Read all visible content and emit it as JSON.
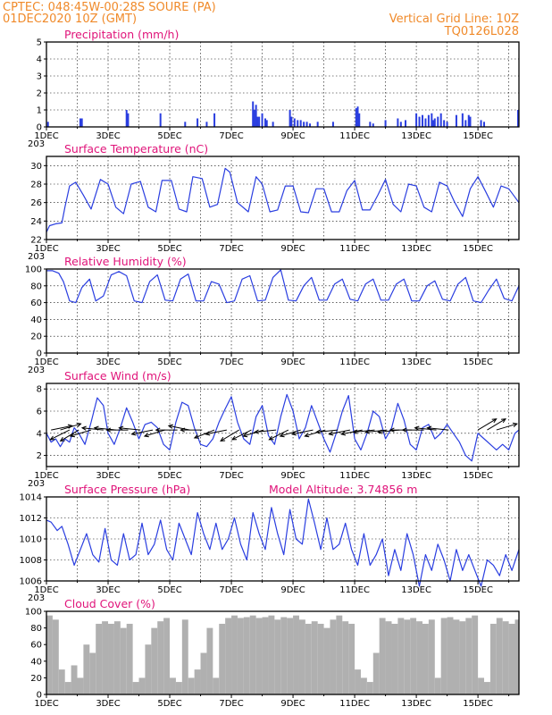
{
  "header": {
    "left_line1": "CPTEC:   048:45W-00:28S  SOURE (PA)",
    "left_line2": "01DEC2020 10Z (GMT)",
    "right_line1": "Vertical Grid Line: 10Z",
    "right_line2": "TQ0126L028"
  },
  "colors": {
    "header": "#f08a2a",
    "title": "#e0147a",
    "line": "#2a3ee0",
    "cloud": "#b0b0b0"
  },
  "x_axis": {
    "labels": [
      "1DEC",
      "3DEC",
      "5DEC",
      "7DEC",
      "9DEC",
      "11DEC",
      "13DEC",
      "15DEC"
    ],
    "label_days": [
      1,
      3,
      5,
      7,
      9,
      11,
      13,
      15
    ],
    "start_day": 1,
    "end_day": 16.33,
    "year_fragment": "203"
  },
  "chart_data": [
    {
      "id": "precip",
      "type": "bar",
      "title": "Precipitation (mm/h)",
      "ylim": [
        0,
        5
      ],
      "yticks": [
        0,
        1,
        2,
        3,
        4,
        5
      ],
      "grid": true,
      "x": [
        1.05,
        2.1,
        2.15,
        3.6,
        3.65,
        4.7,
        5.5,
        5.9,
        6.2,
        6.45,
        7.7,
        7.75,
        7.8,
        7.85,
        7.9,
        8.0,
        8.1,
        8.15,
        8.35,
        8.9,
        8.95,
        9.05,
        9.15,
        9.25,
        9.35,
        9.45,
        9.55,
        9.8,
        10.3,
        11.05,
        11.1,
        11.15,
        11.5,
        11.6,
        12.0,
        12.4,
        12.5,
        12.65,
        13.0,
        13.1,
        13.2,
        13.3,
        13.4,
        13.5,
        13.55,
        13.6,
        13.7,
        13.8,
        13.9,
        14.0,
        14.3,
        14.5,
        14.6,
        14.7,
        14.75,
        15.1,
        15.2,
        16.3
      ],
      "values": [
        0.3,
        0.5,
        0.5,
        1.0,
        0.8,
        0.8,
        0.3,
        0.5,
        0.3,
        0.8,
        1.5,
        1.0,
        1.3,
        0.6,
        0.6,
        0.8,
        0.5,
        0.4,
        0.3,
        1.0,
        0.6,
        0.5,
        0.4,
        0.4,
        0.3,
        0.3,
        0.2,
        0.3,
        0.3,
        1.1,
        1.2,
        0.8,
        0.3,
        0.2,
        0.4,
        0.5,
        0.3,
        0.4,
        0.8,
        0.6,
        0.7,
        0.5,
        0.7,
        0.8,
        0.4,
        0.5,
        0.6,
        0.8,
        0.4,
        0.3,
        0.7,
        0.8,
        0.4,
        0.7,
        0.6,
        0.4,
        0.3,
        1.0
      ]
    },
    {
      "id": "temp",
      "type": "line",
      "title": "Surface Temperature (nC)",
      "ylim": [
        22,
        31
      ],
      "yticks": [
        22,
        24,
        26,
        28,
        30
      ],
      "grid": true,
      "x": [
        1.0,
        1.1,
        1.3,
        1.5,
        1.6,
        1.75,
        1.95,
        2.2,
        2.45,
        2.75,
        3.0,
        3.25,
        3.5,
        3.75,
        4.05,
        4.3,
        4.55,
        4.75,
        5.05,
        5.3,
        5.55,
        5.75,
        6.05,
        6.3,
        6.55,
        6.8,
        6.95,
        7.2,
        7.55,
        7.8,
        8.0,
        8.25,
        8.5,
        8.75,
        9.0,
        9.25,
        9.5,
        9.75,
        10.0,
        10.25,
        10.5,
        10.75,
        11.0,
        11.25,
        11.5,
        11.75,
        12.0,
        12.25,
        12.5,
        12.75,
        13.0,
        13.25,
        13.5,
        13.75,
        14.0,
        14.25,
        14.5,
        14.75,
        15.0,
        15.25,
        15.5,
        15.75,
        16.0,
        16.33
      ],
      "values": [
        22.8,
        23.5,
        23.7,
        23.8,
        25.5,
        27.8,
        28.2,
        26.8,
        25.3,
        28.5,
        28.0,
        25.5,
        24.8,
        28.0,
        28.3,
        25.5,
        25.0,
        28.4,
        28.4,
        25.3,
        25.0,
        28.8,
        28.6,
        25.5,
        25.8,
        29.7,
        29.3,
        26.0,
        25.0,
        28.8,
        28.0,
        25.0,
        25.2,
        27.8,
        27.8,
        25.0,
        24.9,
        27.5,
        27.5,
        25.0,
        25.0,
        27.3,
        28.4,
        25.2,
        25.2,
        26.8,
        28.5,
        25.8,
        25.0,
        28.0,
        27.8,
        25.5,
        25.0,
        28.2,
        27.8,
        26.0,
        24.5,
        27.5,
        28.8,
        27.2,
        25.5,
        27.8,
        27.5,
        26.0
      ]
    },
    {
      "id": "rh",
      "type": "line",
      "title": "Relative Humidity (%)",
      "ylim": [
        0,
        100
      ],
      "yticks": [
        0,
        20,
        40,
        60,
        80,
        100
      ],
      "grid": true,
      "x": [
        1.0,
        1.2,
        1.4,
        1.55,
        1.75,
        1.95,
        2.15,
        2.4,
        2.6,
        2.85,
        3.1,
        3.35,
        3.6,
        3.85,
        4.1,
        4.35,
        4.6,
        4.85,
        5.1,
        5.35,
        5.6,
        5.85,
        6.1,
        6.35,
        6.6,
        6.85,
        7.1,
        7.35,
        7.6,
        7.85,
        8.1,
        8.35,
        8.6,
        8.85,
        9.1,
        9.35,
        9.6,
        9.85,
        10.1,
        10.35,
        10.6,
        10.85,
        11.1,
        11.35,
        11.6,
        11.85,
        12.1,
        12.35,
        12.6,
        12.85,
        13.1,
        13.35,
        13.6,
        13.85,
        14.1,
        14.35,
        14.6,
        14.85,
        15.1,
        15.35,
        15.6,
        15.85,
        16.1,
        16.33
      ],
      "values": [
        98,
        98,
        95,
        85,
        62,
        60,
        78,
        88,
        62,
        68,
        93,
        97,
        92,
        62,
        60,
        85,
        93,
        63,
        62,
        88,
        94,
        62,
        62,
        85,
        82,
        60,
        62,
        88,
        92,
        62,
        63,
        90,
        99,
        63,
        62,
        80,
        90,
        63,
        63,
        82,
        88,
        64,
        62,
        82,
        88,
        63,
        63,
        82,
        88,
        62,
        62,
        80,
        86,
        64,
        62,
        82,
        90,
        62,
        60,
        75,
        88,
        65,
        62,
        80
      ]
    },
    {
      "id": "wind",
      "type": "line",
      "title": "Surface Wind (m/s)",
      "ylim": [
        1,
        8.5
      ],
      "yticks": [
        2,
        4,
        6,
        8
      ],
      "grid": true,
      "x": [
        1.0,
        1.15,
        1.3,
        1.45,
        1.6,
        1.75,
        1.9,
        2.05,
        2.25,
        2.45,
        2.65,
        2.85,
        3.0,
        3.2,
        3.4,
        3.6,
        3.8,
        4.0,
        4.2,
        4.4,
        4.6,
        4.8,
        5.0,
        5.2,
        5.4,
        5.6,
        5.8,
        6.0,
        6.2,
        6.4,
        6.6,
        6.8,
        7.0,
        7.2,
        7.4,
        7.6,
        7.8,
        8.0,
        8.2,
        8.4,
        8.6,
        8.8,
        9.0,
        9.2,
        9.4,
        9.6,
        9.8,
        10.0,
        10.2,
        10.4,
        10.6,
        10.8,
        11.0,
        11.2,
        11.4,
        11.6,
        11.8,
        12.0,
        12.2,
        12.4,
        12.6,
        12.8,
        13.0,
        13.2,
        13.4,
        13.6,
        13.8,
        14.0,
        14.2,
        14.4,
        14.6,
        14.8,
        15.0,
        15.2,
        15.4,
        15.6,
        15.8,
        16.0,
        16.2,
        16.33
      ],
      "values": [
        4.0,
        3.2,
        3.5,
        2.8,
        3.5,
        3.2,
        4.5,
        4.0,
        3.0,
        5.0,
        7.2,
        6.5,
        4.0,
        3.0,
        4.5,
        6.3,
        5.0,
        3.5,
        4.8,
        5.0,
        4.5,
        3.0,
        2.5,
        5.0,
        6.8,
        6.5,
        4.5,
        3.0,
        2.8,
        3.5,
        5.0,
        6.2,
        7.3,
        5.0,
        3.5,
        3.0,
        5.5,
        6.5,
        3.8,
        3.0,
        5.5,
        7.5,
        6.0,
        3.5,
        4.5,
        6.5,
        5.0,
        3.5,
        2.3,
        4.0,
        6.0,
        7.4,
        3.5,
        2.5,
        4.0,
        6.0,
        5.5,
        3.5,
        4.5,
        6.7,
        5.2,
        3.0,
        2.5,
        4.5,
        4.8,
        3.5,
        4.0,
        4.8,
        4.0,
        3.2,
        2.0,
        1.5,
        4.0,
        3.5,
        3.0,
        2.5,
        3.0,
        2.5,
        4.0,
        4.3
      ]
    },
    {
      "id": "pressure",
      "type": "line",
      "title": "Surface Pressure (hPa)",
      "annotation": "Model Altitude: 3.74856 m",
      "ylim": [
        1006,
        1014
      ],
      "yticks": [
        1006,
        1008,
        1010,
        1012,
        1014
      ],
      "grid": true,
      "x": [
        1.0,
        1.15,
        1.35,
        1.5,
        1.7,
        1.9,
        2.1,
        2.3,
        2.5,
        2.7,
        2.9,
        3.1,
        3.3,
        3.5,
        3.7,
        3.9,
        4.1,
        4.3,
        4.5,
        4.7,
        4.9,
        5.1,
        5.3,
        5.5,
        5.7,
        5.9,
        6.1,
        6.3,
        6.5,
        6.7,
        6.9,
        7.1,
        7.3,
        7.5,
        7.7,
        7.9,
        8.1,
        8.3,
        8.5,
        8.7,
        8.9,
        9.1,
        9.3,
        9.5,
        9.7,
        9.9,
        10.1,
        10.3,
        10.5,
        10.7,
        10.9,
        11.1,
        11.3,
        11.5,
        11.7,
        11.9,
        12.1,
        12.3,
        12.5,
        12.7,
        12.9,
        13.1,
        13.3,
        13.5,
        13.7,
        13.9,
        14.1,
        14.3,
        14.5,
        14.7,
        14.9,
        15.1,
        15.3,
        15.5,
        15.7,
        15.9,
        16.1,
        16.33
      ],
      "values": [
        1011.8,
        1011.6,
        1010.8,
        1011.2,
        1009.5,
        1007.5,
        1009.0,
        1010.5,
        1008.5,
        1007.8,
        1011.0,
        1008.0,
        1007.5,
        1010.5,
        1008.0,
        1008.5,
        1011.5,
        1008.5,
        1009.5,
        1011.8,
        1009.0,
        1008.0,
        1011.5,
        1010.0,
        1008.5,
        1012.5,
        1010.5,
        1009.0,
        1011.5,
        1009.0,
        1010.0,
        1012.0,
        1009.5,
        1008.0,
        1012.5,
        1010.5,
        1009.0,
        1013.0,
        1010.5,
        1008.5,
        1012.8,
        1010.0,
        1009.5,
        1013.8,
        1011.5,
        1009.0,
        1012.0,
        1009.0,
        1009.5,
        1011.5,
        1009.0,
        1007.5,
        1010.5,
        1007.5,
        1008.5,
        1010.0,
        1006.5,
        1009.0,
        1007.0,
        1010.5,
        1008.5,
        1005.5,
        1008.5,
        1007.0,
        1009.5,
        1008.0,
        1006.0,
        1009.0,
        1007.0,
        1008.5,
        1007.0,
        1005.5,
        1008.0,
        1007.5,
        1006.5,
        1008.5,
        1007.0,
        1009.0
      ]
    },
    {
      "id": "cloud",
      "type": "area",
      "title": "Cloud Cover (%)",
      "ylim": [
        0,
        100
      ],
      "yticks": [
        0,
        20,
        40,
        60,
        80,
        100
      ],
      "grid": false,
      "x": [
        1.0,
        1.2,
        1.4,
        1.6,
        1.8,
        2.0,
        2.2,
        2.4,
        2.6,
        2.8,
        3.0,
        3.2,
        3.4,
        3.6,
        3.8,
        4.0,
        4.2,
        4.4,
        4.6,
        4.8,
        5.0,
        5.2,
        5.4,
        5.6,
        5.8,
        6.0,
        6.2,
        6.4,
        6.6,
        6.8,
        7.0,
        7.2,
        7.4,
        7.6,
        7.8,
        8.0,
        8.2,
        8.4,
        8.6,
        8.8,
        9.0,
        9.2,
        9.4,
        9.6,
        9.8,
        10.0,
        10.2,
        10.4,
        10.6,
        10.8,
        11.0,
        11.2,
        11.4,
        11.6,
        11.8,
        12.0,
        12.2,
        12.4,
        12.6,
        12.8,
        13.0,
        13.2,
        13.4,
        13.6,
        13.8,
        14.0,
        14.2,
        14.4,
        14.6,
        14.8,
        15.0,
        15.2,
        15.4,
        15.6,
        15.8,
        16.0,
        16.2,
        16.33
      ],
      "values": [
        95,
        90,
        30,
        15,
        35,
        20,
        60,
        50,
        85,
        88,
        85,
        88,
        80,
        85,
        15,
        20,
        60,
        80,
        88,
        92,
        20,
        15,
        90,
        20,
        30,
        50,
        80,
        20,
        85,
        92,
        95,
        92,
        93,
        95,
        92,
        93,
        95,
        90,
        93,
        92,
        95,
        90,
        85,
        88,
        85,
        80,
        90,
        95,
        88,
        85,
        30,
        20,
        15,
        50,
        92,
        88,
        85,
        92,
        90,
        92,
        88,
        85,
        90,
        20,
        92,
        93,
        90,
        88,
        92,
        95,
        20,
        15,
        85,
        92,
        88,
        85,
        90,
        92
      ]
    }
  ],
  "wind_vectors": {
    "x": [
      1.15,
      1.45,
      1.75,
      2.05,
      2.45,
      2.85,
      3.25,
      3.65,
      4.05,
      4.45,
      4.85,
      5.25,
      5.65,
      6.05,
      6.45,
      6.85,
      7.25,
      7.65,
      8.05,
      8.45,
      8.85,
      9.25,
      9.65,
      10.05,
      10.45,
      10.85,
      11.25,
      11.65,
      12.05,
      12.45,
      12.85,
      13.25,
      13.65,
      14.05,
      15.0,
      15.3,
      15.6
    ],
    "u": [
      1,
      1,
      -1,
      -1,
      -1,
      -1,
      -1,
      -1,
      -1,
      -1,
      -1,
      -1,
      -1,
      -1,
      -1,
      -1,
      -1,
      -1,
      -1,
      -1,
      -1,
      -1,
      -1,
      -1,
      -1,
      -1,
      -1,
      -1,
      -1,
      -1,
      -1,
      -1,
      -1,
      -1,
      1,
      1,
      1
    ],
    "v": [
      0.2,
      0.3,
      -0.5,
      -0.6,
      -0.3,
      0.1,
      0.1,
      0.0,
      0.1,
      -0.2,
      -0.3,
      0.0,
      0.2,
      0.0,
      -0.4,
      -0.2,
      -0.6,
      -0.5,
      -0.3,
      -0.1,
      -0.5,
      -0.3,
      -0.2,
      -0.3,
      -0.1,
      -0.2,
      -0.2,
      -0.1,
      -0.1,
      -0.1,
      0.0,
      0.0,
      0.1,
      0.1,
      0.6,
      0.6,
      0.3
    ],
    "base_value": 4.3
  }
}
